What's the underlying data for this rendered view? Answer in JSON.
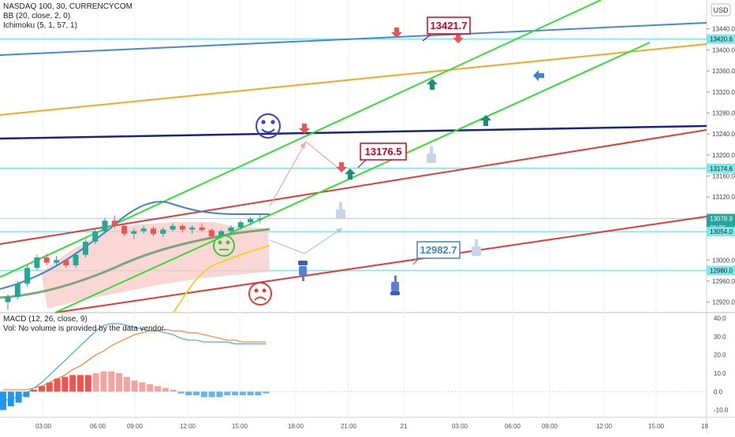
{
  "header": {
    "symbol_line": "NASDAQ 100, 30, CURRENCYCOM",
    "bb_line": "BB (20, close, 2, 0)",
    "ichimoku_line": "Ichimoku (5, 1, 57, 1)",
    "currency": "USD"
  },
  "macd_header": {
    "macd_line": "MACD (12, 26, close, 9)",
    "vol_line": "Vol: No volume is provided by the data vendor."
  },
  "callouts": {
    "top": "13421.7",
    "mid": "13176.5",
    "low": "12982.7"
  },
  "chart_data": [
    {
      "type": "candlestick",
      "title": "NASDAQ 100, 30, CURRENCYCOM",
      "ylim": [
        12900,
        13495
      ],
      "y_ticks": [
        "13440.0",
        "13400.0",
        "13360.0",
        "13320.0",
        "13280.0",
        "13240.0",
        "13200.0",
        "13160.0",
        "13120.0",
        "13000.0",
        "12960.0",
        "12920.0"
      ],
      "x_ticks": [
        "03:00",
        "06:00",
        "09:00",
        "12:00",
        "15:00",
        "18:00",
        "21:00",
        "21",
        "03:00",
        "06:00",
        "09:00",
        "12:00",
        "15:00",
        "18"
      ],
      "price_labels": [
        {
          "text": "13420.6",
          "value": 13420.6,
          "color": "#7ee8e8"
        },
        {
          "text": "13174.6",
          "value": 13174.6,
          "color": "#7ee8e8"
        },
        {
          "text": "13078.9",
          "value": 13078.9,
          "color": "#26a69a"
        },
        {
          "text": "06:26",
          "value": 13062,
          "color": "#26a69a"
        },
        {
          "text": "13054.0",
          "value": 13054.0,
          "color": "#7ee8e8"
        },
        {
          "text": "12980.0",
          "value": 12980.0,
          "color": "#7ee8e8"
        }
      ],
      "horizontal_levels": [
        13420.6,
        13174.6,
        13078.9,
        13054.0,
        12980.0
      ],
      "candles": [
        [
          12920,
          12935,
          12905,
          12930
        ],
        [
          12930,
          12960,
          12925,
          12955
        ],
        [
          12955,
          12990,
          12950,
          12985
        ],
        [
          12985,
          13010,
          12980,
          13005
        ],
        [
          13005,
          13012,
          12990,
          12995
        ],
        [
          12995,
          13008,
          12990,
          13000
        ],
        [
          13000,
          13002,
          12985,
          12990
        ],
        [
          12990,
          13015,
          12985,
          13010
        ],
        [
          13010,
          13040,
          13005,
          13035
        ],
        [
          13035,
          13060,
          13030,
          13055
        ],
        [
          13055,
          13080,
          13050,
          13075
        ],
        [
          13075,
          13085,
          13060,
          13065
        ],
        [
          13065,
          13070,
          13045,
          13050
        ],
        [
          13050,
          13060,
          13040,
          13055
        ],
        [
          13055,
          13065,
          13050,
          13060
        ],
        [
          13060,
          13064,
          13045,
          13050
        ],
        [
          13050,
          13062,
          13044,
          13058
        ],
        [
          13058,
          13070,
          13055,
          13065
        ],
        [
          13065,
          13068,
          13052,
          13058
        ],
        [
          13058,
          13066,
          13050,
          13062
        ],
        [
          13062,
          13070,
          13055,
          13057
        ],
        [
          13057,
          13060,
          13040,
          13045
        ],
        [
          13045,
          13058,
          13042,
          13055
        ],
        [
          13055,
          13066,
          13050,
          13062
        ],
        [
          13062,
          13075,
          13058,
          13072
        ],
        [
          13072,
          13082,
          13066,
          13078
        ],
        [
          13078,
          13088,
          13070,
          13079
        ]
      ],
      "callouts": [
        {
          "text": "13421.7",
          "value": 13421.7
        },
        {
          "text": "13176.5",
          "value": 13176.5
        },
        {
          "text": "12982.7",
          "value": 12982.7
        }
      ]
    },
    {
      "type": "histogram",
      "title": "MACD (12, 26, close, 9)",
      "ylim": [
        -14,
        43
      ],
      "y_ticks": [
        "40.0",
        "30.0",
        "20.0",
        "10.0",
        "0.0",
        "-10.0"
      ],
      "histogram": [
        -10,
        -8,
        -6,
        -3,
        1,
        3,
        5,
        7,
        8,
        9,
        9,
        9,
        10,
        11,
        11,
        10,
        8,
        6,
        5,
        4,
        3,
        2,
        1,
        -1,
        -2,
        -2,
        -3,
        -3,
        -3,
        -2,
        -2,
        -2,
        -2,
        -2,
        -1
      ],
      "macd": [
        -5,
        -4,
        -3,
        -1,
        2,
        5,
        9,
        13,
        17,
        21,
        25,
        29,
        33,
        36,
        37,
        37,
        36,
        35,
        34,
        33,
        33,
        32,
        31,
        29,
        28,
        28,
        27,
        27,
        27,
        27,
        26,
        26,
        26,
        26,
        26
      ],
      "signal": [
        1,
        1,
        1,
        1,
        2,
        3,
        5,
        7,
        9,
        12,
        14,
        17,
        20,
        22,
        25,
        27,
        29,
        31,
        32,
        33,
        33,
        34,
        33,
        33,
        32,
        32,
        31,
        30,
        29,
        28,
        28,
        27,
        27,
        27,
        27
      ]
    }
  ],
  "colors": {
    "up": "#26a69a",
    "down": "#ef5350",
    "bb": "#3d85c6",
    "cloud": "#f8c9c7",
    "callout_red": "#d0021b",
    "callout_blue": "#3d85c6"
  }
}
